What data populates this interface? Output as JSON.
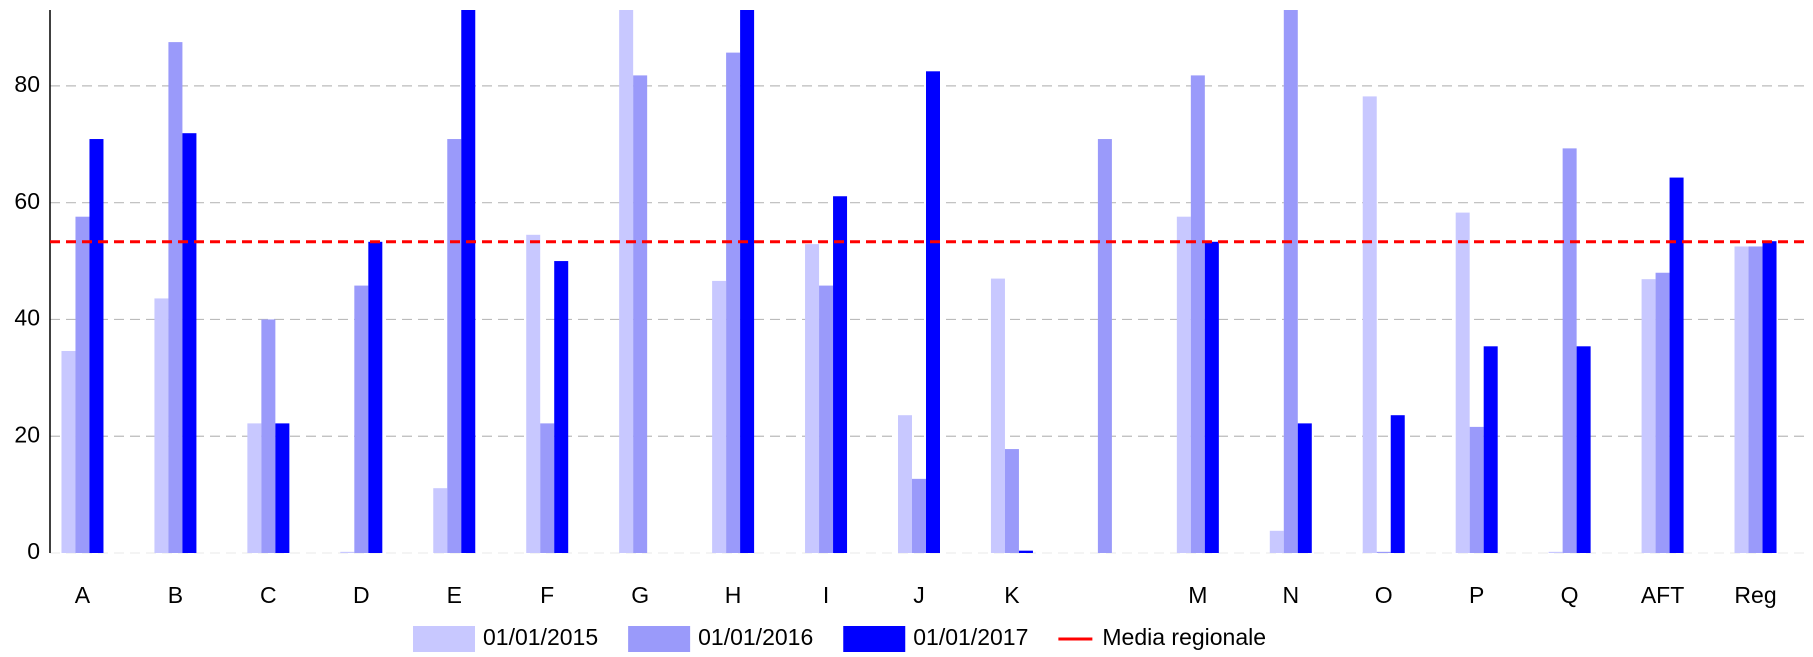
{
  "chart_data": {
    "type": "bar",
    "categories": [
      "A",
      "B",
      "C",
      "D",
      "E",
      "F",
      "G",
      "H",
      "I",
      "J",
      "K",
      null,
      "M",
      "N",
      "O",
      "P",
      "Q",
      "AFT",
      "Reg"
    ],
    "series": [
      {
        "name": "01/01/2015",
        "color": "#c8c8ff",
        "values": [
          34.6,
          43.6,
          22.2,
          0.2,
          11.1,
          54.5,
          100,
          46.6,
          52.9,
          23.6,
          47.0,
          0,
          57.6,
          3.8,
          78.2,
          58.3,
          0.2,
          46.9,
          52.5
        ]
      },
      {
        "name": "01/01/2016",
        "color": "#9a9afa",
        "values": [
          57.6,
          87.5,
          40.0,
          45.8,
          70.9,
          22.2,
          81.8,
          85.7,
          45.8,
          12.7,
          17.8,
          70.9,
          81.8,
          100,
          0.2,
          21.6,
          69.3,
          48.0,
          52.5
        ]
      },
      {
        "name": "01/01/2017",
        "color": "#0000ff",
        "values": [
          70.9,
          71.9,
          22.2,
          53.3,
          100,
          50.0,
          0,
          100,
          61.1,
          82.5,
          0.4,
          0,
          53.3,
          22.2,
          23.6,
          35.4,
          35.4,
          64.3,
          53.4
        ]
      }
    ],
    "reference_line": {
      "name": "Media regionale",
      "value": 53.3,
      "color": "#ff0000"
    },
    "ylim": [
      0,
      93
    ],
    "yticks": [
      0,
      20,
      40,
      60,
      80
    ],
    "grid": true,
    "legend": "bottom"
  }
}
